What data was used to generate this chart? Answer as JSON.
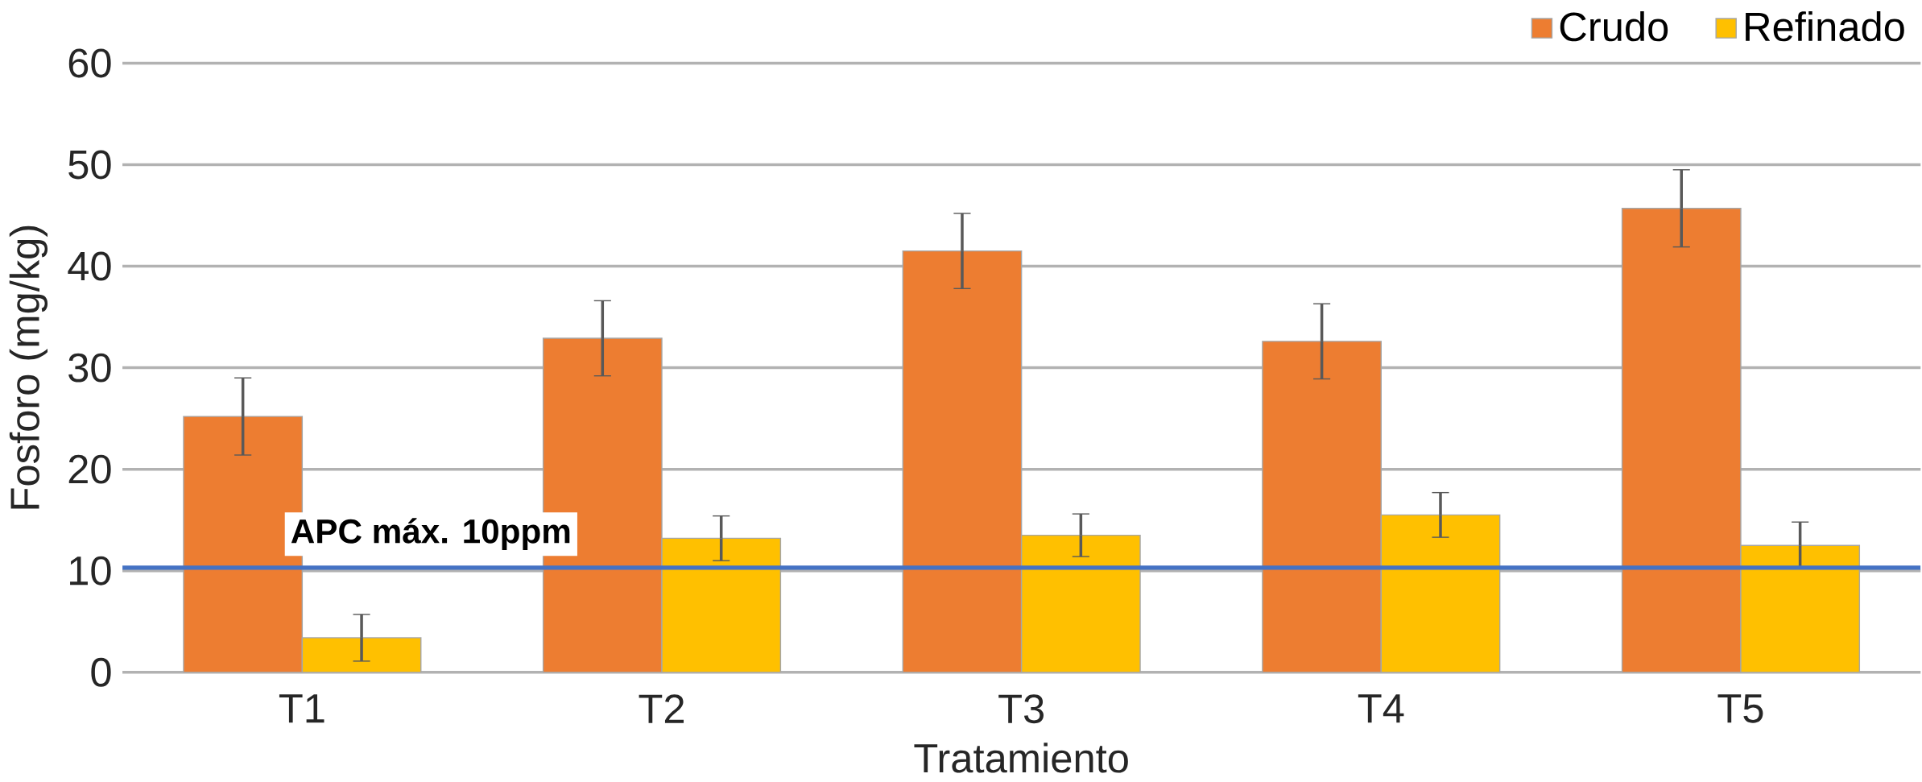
{
  "chart_data": {
    "type": "bar",
    "xlabel": "Tratamiento",
    "ylabel": "Fosforo (mg/kg)",
    "categories": [
      "T1",
      "T2",
      "T3",
      "T4",
      "T5"
    ],
    "series": [
      {
        "name": "Crudo",
        "color": "#ed7d31",
        "values": [
          25.2,
          32.9,
          41.5,
          32.6,
          45.7
        ],
        "errors": [
          3.8,
          3.7,
          3.7,
          3.7,
          3.8
        ]
      },
      {
        "name": "Refinado",
        "color": "#ffc000",
        "values": [
          3.4,
          13.2,
          13.5,
          15.5,
          12.5
        ],
        "errors": [
          2.3,
          2.2,
          2.1,
          2.2,
          2.3
        ]
      }
    ],
    "ylim": [
      0,
      60
    ],
    "yticks": [
      0,
      10,
      20,
      30,
      40,
      50,
      60
    ],
    "grid": "y",
    "legend": "top right",
    "ref_lines": [
      {
        "axis": "y",
        "value": 10.3,
        "label": "APC máx. 10ppm",
        "color": "#4472c4"
      }
    ]
  }
}
